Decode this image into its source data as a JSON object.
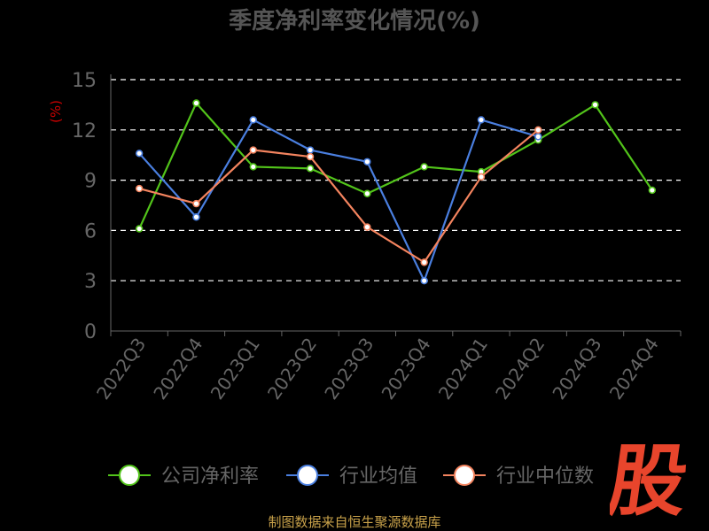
{
  "chart_data": {
    "type": "line",
    "title": "季度净利率变化情况(%)",
    "ylabel": "(%)",
    "categories": [
      "2022Q3",
      "2022Q4",
      "2023Q1",
      "2023Q2",
      "2023Q3",
      "2023Q4",
      "2024Q1",
      "2024Q2",
      "2024Q3",
      "2024Q4"
    ],
    "ylim": [
      0,
      15
    ],
    "yticks": [
      0,
      3,
      6,
      9,
      12,
      15
    ],
    "grid": true,
    "legend_position": "bottom",
    "series": [
      {
        "name": "公司净利率",
        "color": "#52c41a",
        "values": [
          6.1,
          13.6,
          9.8,
          9.7,
          8.2,
          9.8,
          9.5,
          11.4,
          13.5,
          8.4
        ]
      },
      {
        "name": "行业均值",
        "color": "#4a7fe0",
        "values": [
          10.6,
          6.8,
          12.6,
          10.8,
          10.1,
          3.0,
          12.6,
          11.6,
          null,
          null
        ]
      },
      {
        "name": "行业中位数",
        "color": "#f4845f",
        "values": [
          8.5,
          7.6,
          10.8,
          10.4,
          6.2,
          4.1,
          9.2,
          12.0,
          null,
          null
        ]
      }
    ]
  },
  "source_text": "制图数据来自恒生聚源数据库",
  "watermark_text": "股"
}
